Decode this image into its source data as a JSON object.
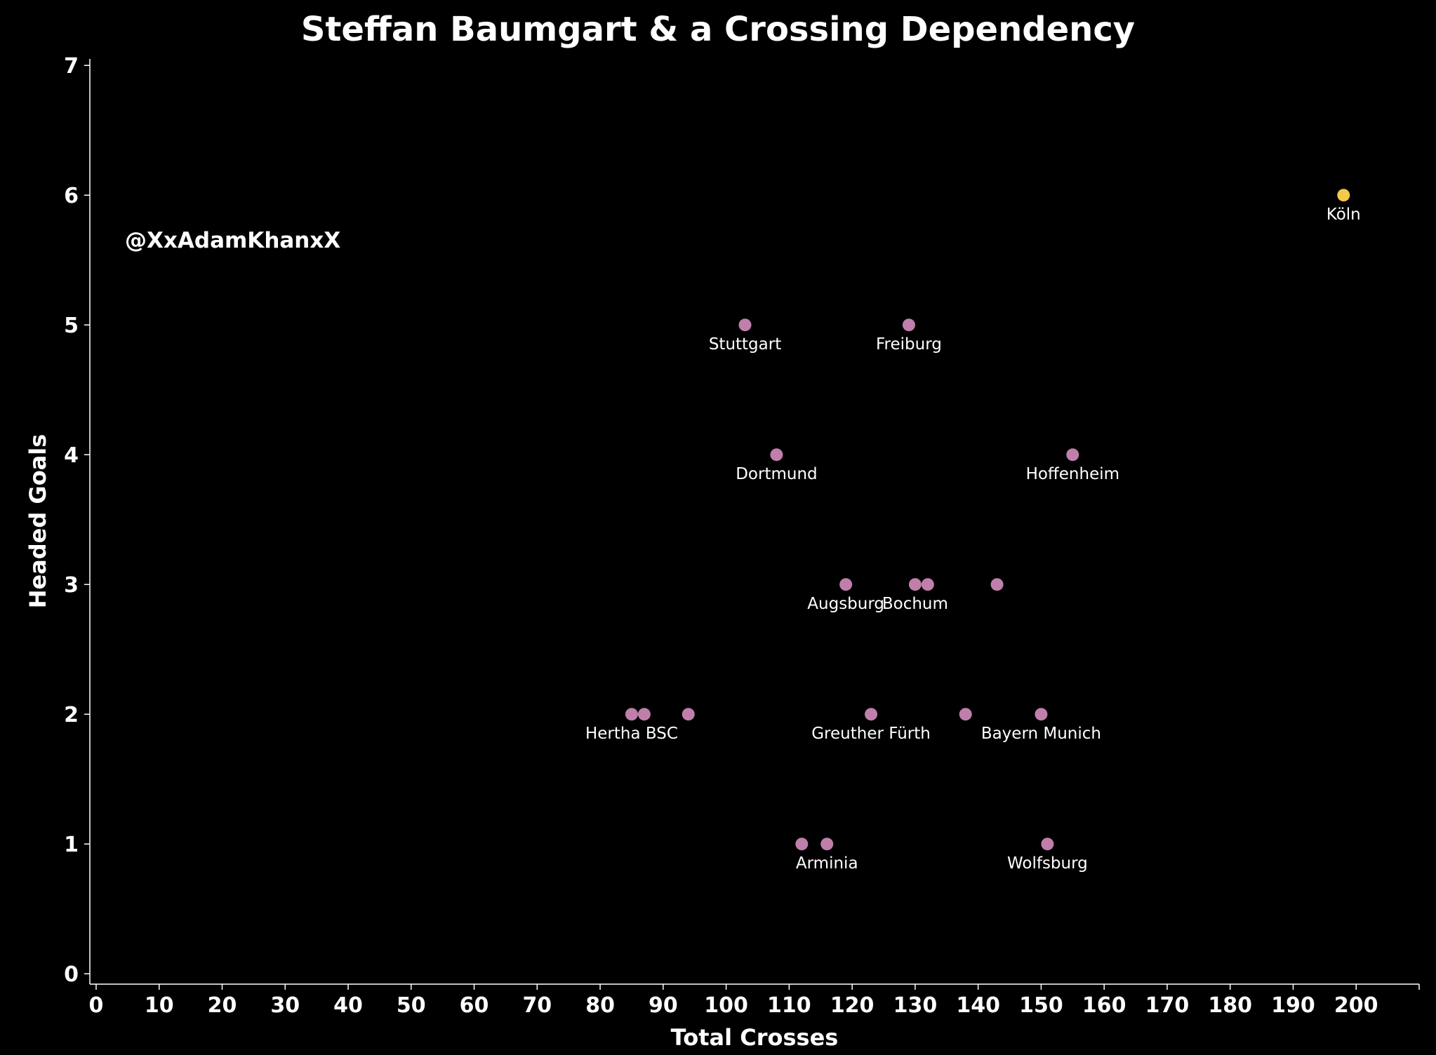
{
  "chart_data": {
    "type": "scatter",
    "title": "Steffan Baumgart & a Crossing Dependency",
    "xlabel": "Total Crosses",
    "ylabel": "Headed Goals",
    "watermark": "@XxAdamKhanxX",
    "xlim": [
      -1,
      210
    ],
    "ylim": [
      -0.08,
      7.05
    ],
    "xticks": [
      0,
      10,
      20,
      30,
      40,
      50,
      60,
      70,
      80,
      90,
      100,
      110,
      120,
      130,
      140,
      150,
      160,
      170,
      180,
      190,
      200
    ],
    "yticks": [
      0,
      1,
      2,
      3,
      4,
      5,
      6,
      7
    ],
    "grid": false,
    "colors": {
      "background": "#000000",
      "text": "#ffffff",
      "default_point": "#c07fab",
      "highlight_point": "#f2c94c"
    },
    "points": [
      {
        "x": 198,
        "y": 6,
        "label": "Köln",
        "highlight": true
      },
      {
        "x": 103,
        "y": 5,
        "label": "Stuttgart"
      },
      {
        "x": 129,
        "y": 5,
        "label": "Freiburg"
      },
      {
        "x": 108,
        "y": 4,
        "label": "Dortmund"
      },
      {
        "x": 155,
        "y": 4,
        "label": "Hoffenheim"
      },
      {
        "x": 119,
        "y": 3,
        "label": "Augsburg"
      },
      {
        "x": 130,
        "y": 3,
        "label": "Bochum"
      },
      {
        "x": 132,
        "y": 3,
        "label": ""
      },
      {
        "x": 143,
        "y": 3,
        "label": ""
      },
      {
        "x": 85,
        "y": 2,
        "label": "Hertha BSC"
      },
      {
        "x": 87,
        "y": 2,
        "label": ""
      },
      {
        "x": 94,
        "y": 2,
        "label": ""
      },
      {
        "x": 123,
        "y": 2,
        "label": "Greuther Fürth"
      },
      {
        "x": 138,
        "y": 2,
        "label": ""
      },
      {
        "x": 150,
        "y": 2,
        "label": "Bayern Munich"
      },
      {
        "x": 112,
        "y": 1,
        "label": ""
      },
      {
        "x": 116,
        "y": 1,
        "label": "Arminia"
      },
      {
        "x": 151,
        "y": 1,
        "label": "Wolfsburg"
      }
    ]
  }
}
